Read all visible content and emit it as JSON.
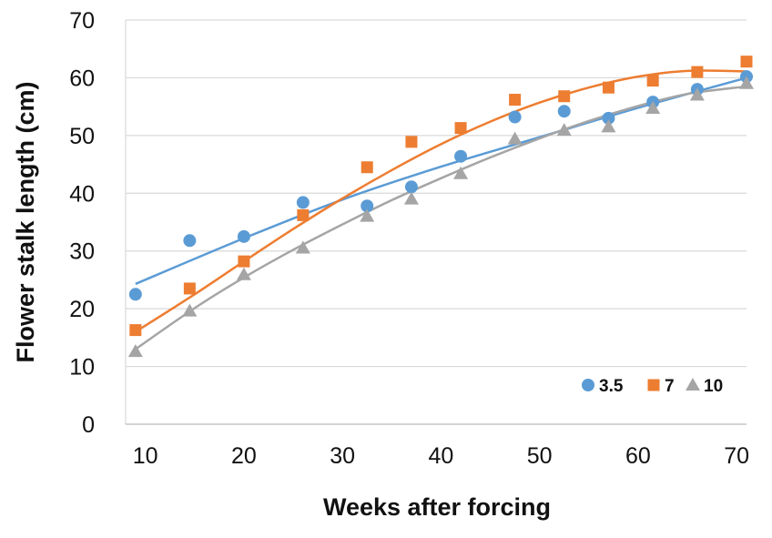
{
  "chart_data": {
    "type": "scatter",
    "xlabel": "Weeks after forcing",
    "ylabel": "Flower stalk length (cm)",
    "xlim": [
      8,
      71
    ],
    "ylim": [
      0,
      70
    ],
    "x_ticks": [
      10,
      20,
      30,
      40,
      50,
      60,
      70
    ],
    "y_ticks": [
      0,
      10,
      20,
      30,
      40,
      50,
      60,
      70
    ],
    "grid": "horizontal",
    "legend_position": "bottom-right",
    "series": [
      {
        "name": "3.5",
        "color": "#5b9bd5",
        "marker": "circle",
        "points": [
          [
            9,
            22.5
          ],
          [
            14.5,
            31.8
          ],
          [
            20,
            32.5
          ],
          [
            26,
            38.4
          ],
          [
            32.5,
            37.8
          ],
          [
            37,
            41.1
          ],
          [
            42,
            46.4
          ],
          [
            47.5,
            53.2
          ],
          [
            52.5,
            54.2
          ],
          [
            57,
            53
          ],
          [
            61.5,
            55.8
          ],
          [
            66,
            58
          ],
          [
            71,
            60.2
          ]
        ],
        "trend": [
          [
            9,
            24.3
          ],
          [
            20,
            32.2
          ],
          [
            30,
            38.9
          ],
          [
            40,
            44.6
          ],
          [
            50,
            49.7
          ],
          [
            60,
            54.8
          ],
          [
            71,
            60
          ]
        ]
      },
      {
        "name": "7",
        "color": "#ed7d31",
        "marker": "square",
        "points": [
          [
            9,
            16.3
          ],
          [
            14.5,
            23.5
          ],
          [
            20,
            28.2
          ],
          [
            26,
            36.2
          ],
          [
            32.5,
            44.5
          ],
          [
            37,
            48.9
          ],
          [
            42,
            51.3
          ],
          [
            47.5,
            56.2
          ],
          [
            52.5,
            56.8
          ],
          [
            57,
            58.3
          ],
          [
            61.5,
            59.5
          ],
          [
            66,
            61
          ],
          [
            71,
            62.8
          ]
        ],
        "trend": [
          [
            9,
            16
          ],
          [
            15,
            22.5
          ],
          [
            20,
            28.2
          ],
          [
            25,
            33.8
          ],
          [
            30,
            39.1
          ],
          [
            35,
            44
          ],
          [
            40,
            48.5
          ],
          [
            45,
            52.4
          ],
          [
            50,
            55.7
          ],
          [
            55,
            58.3
          ],
          [
            60,
            60.2
          ],
          [
            65,
            61.2
          ],
          [
            71,
            61.1
          ]
        ]
      },
      {
        "name": "10",
        "color": "#a5a5a5",
        "marker": "triangle",
        "points": [
          [
            9,
            12.6
          ],
          [
            14.5,
            19.6
          ],
          [
            20,
            25.9
          ],
          [
            26,
            30.5
          ],
          [
            32.5,
            36
          ],
          [
            37,
            39
          ],
          [
            42,
            43.4
          ],
          [
            47.5,
            49.4
          ],
          [
            52.5,
            50.9
          ],
          [
            57,
            51.5
          ],
          [
            61.5,
            54.7
          ],
          [
            66,
            57
          ],
          [
            71,
            59
          ]
        ],
        "trend": [
          [
            9,
            13
          ],
          [
            15,
            20.1
          ],
          [
            20,
            25.4
          ],
          [
            25,
            30.2
          ],
          [
            30,
            34.6
          ],
          [
            35,
            38.8
          ],
          [
            40,
            42.6
          ],
          [
            45,
            46.2
          ],
          [
            50,
            49.5
          ],
          [
            55,
            52.5
          ],
          [
            60,
            55.1
          ],
          [
            65,
            57.2
          ],
          [
            71,
            58.5
          ]
        ]
      }
    ]
  }
}
